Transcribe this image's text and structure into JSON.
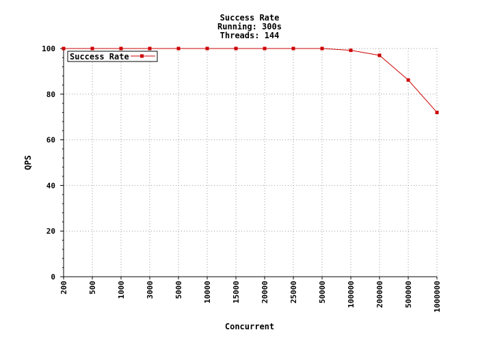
{
  "chart_data": {
    "type": "line",
    "title": "Success Rate",
    "subtitle_lines": [
      "Running: 300s",
      "Threads: 144"
    ],
    "xlabel": "Concurrent",
    "ylabel": "QPS",
    "categories": [
      "200",
      "500",
      "1000",
      "3000",
      "5000",
      "10000",
      "15000",
      "20000",
      "25000",
      "50000",
      "100000",
      "200000",
      "500000",
      "1000000"
    ],
    "series": [
      {
        "name": "Success Rate",
        "values": [
          100,
          100,
          100,
          100,
          100,
          100,
          100,
          100,
          100,
          100,
          99.2,
          97,
          86.2,
          72
        ]
      }
    ],
    "ylim": [
      0,
      100
    ],
    "yticks": [
      0,
      20,
      40,
      60,
      80,
      100
    ],
    "grid": true,
    "legend_position": "top-left",
    "colors": {
      "line": "#cc0000",
      "marker": "#cc0000",
      "grid": "#999999",
      "axis": "#000000"
    }
  }
}
